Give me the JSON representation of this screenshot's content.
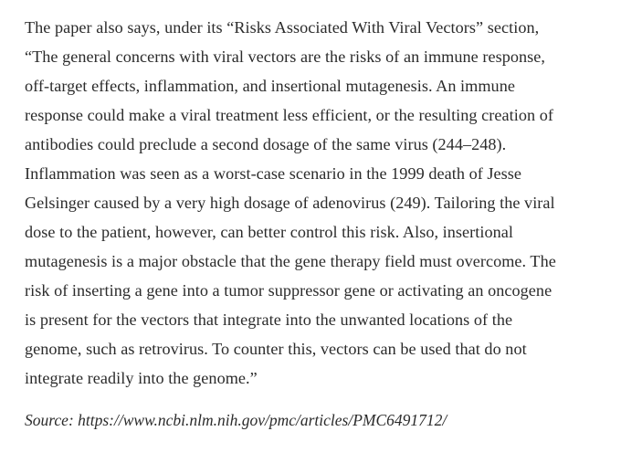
{
  "article": {
    "lines": [
      "The paper also says, under its “Risks Associated With Viral Vectors” section,",
      "“The general concerns with viral vectors are the risks of an immune response,",
      "off-target effects, inflammation, and insertional mutagenesis. An immune",
      "response could make a viral treatment less efficient, or the resulting creation of",
      "antibodies could preclude a second dosage of the same virus (244–248).",
      "Inflammation was seen as a worst-case scenario in the 1999 death of Jesse",
      "Gelsinger caused by a very high dosage of adenovirus (249). Tailoring the viral",
      "dose to the patient, however, can better control this risk. Also, insertional",
      "mutagenesis is a major obstacle that the gene therapy field must overcome. The",
      "risk of inserting a gene into a tumor suppressor gene or activating an oncogene",
      "is present for the vectors that integrate into the unwanted locations of the",
      "genome, such as retrovirus. To counter this, vectors can be used that do not",
      "integrate readily into the genome.”"
    ],
    "source": "Source: https://www.ncbi.nlm.nih.gov/pmc/articles/PMC6491712/"
  }
}
